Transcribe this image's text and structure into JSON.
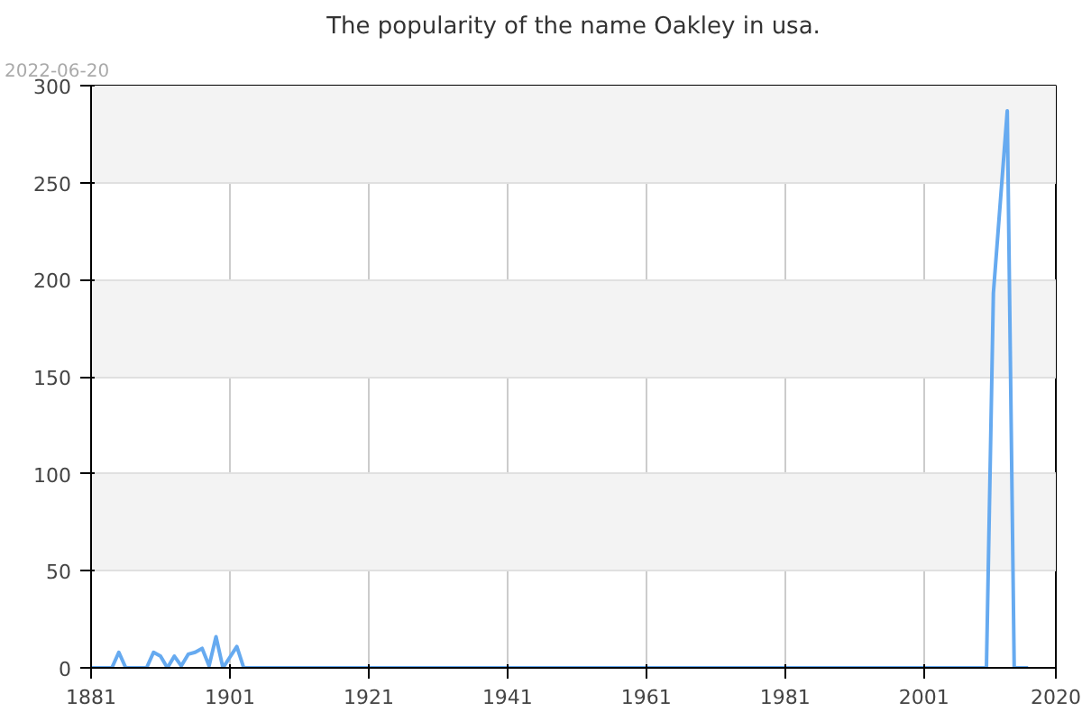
{
  "chart_data": {
    "type": "line",
    "title": "The popularity of the name Oakley in usa.",
    "annotations": [
      "2022-06-20"
    ],
    "x": [
      1881,
      1884,
      1885,
      1886,
      1889,
      1890,
      1891,
      1892,
      1893,
      1894,
      1895,
      1896,
      1897,
      1898,
      1899,
      1900,
      1902,
      1903,
      1904,
      2010,
      2011,
      2012,
      2013,
      2014,
      2016
    ],
    "series": [
      {
        "color": "#66aaf0",
        "values": [
          0,
          0,
          8,
          0,
          0,
          8,
          6,
          0,
          6,
          1,
          7,
          8,
          10,
          1,
          16,
          0,
          11,
          0,
          0,
          0,
          193,
          240,
          287,
          0,
          0
        ]
      }
    ],
    "xlim": [
      1881,
      2020
    ],
    "xticks": [
      1881,
      1901,
      1921,
      1941,
      1961,
      1981,
      2001,
      2020
    ],
    "ylim": [
      0,
      300
    ],
    "yticks": [
      0,
      50,
      100,
      150,
      200,
      250,
      300
    ],
    "grid": true,
    "marker": "none",
    "line_style": "solid"
  }
}
